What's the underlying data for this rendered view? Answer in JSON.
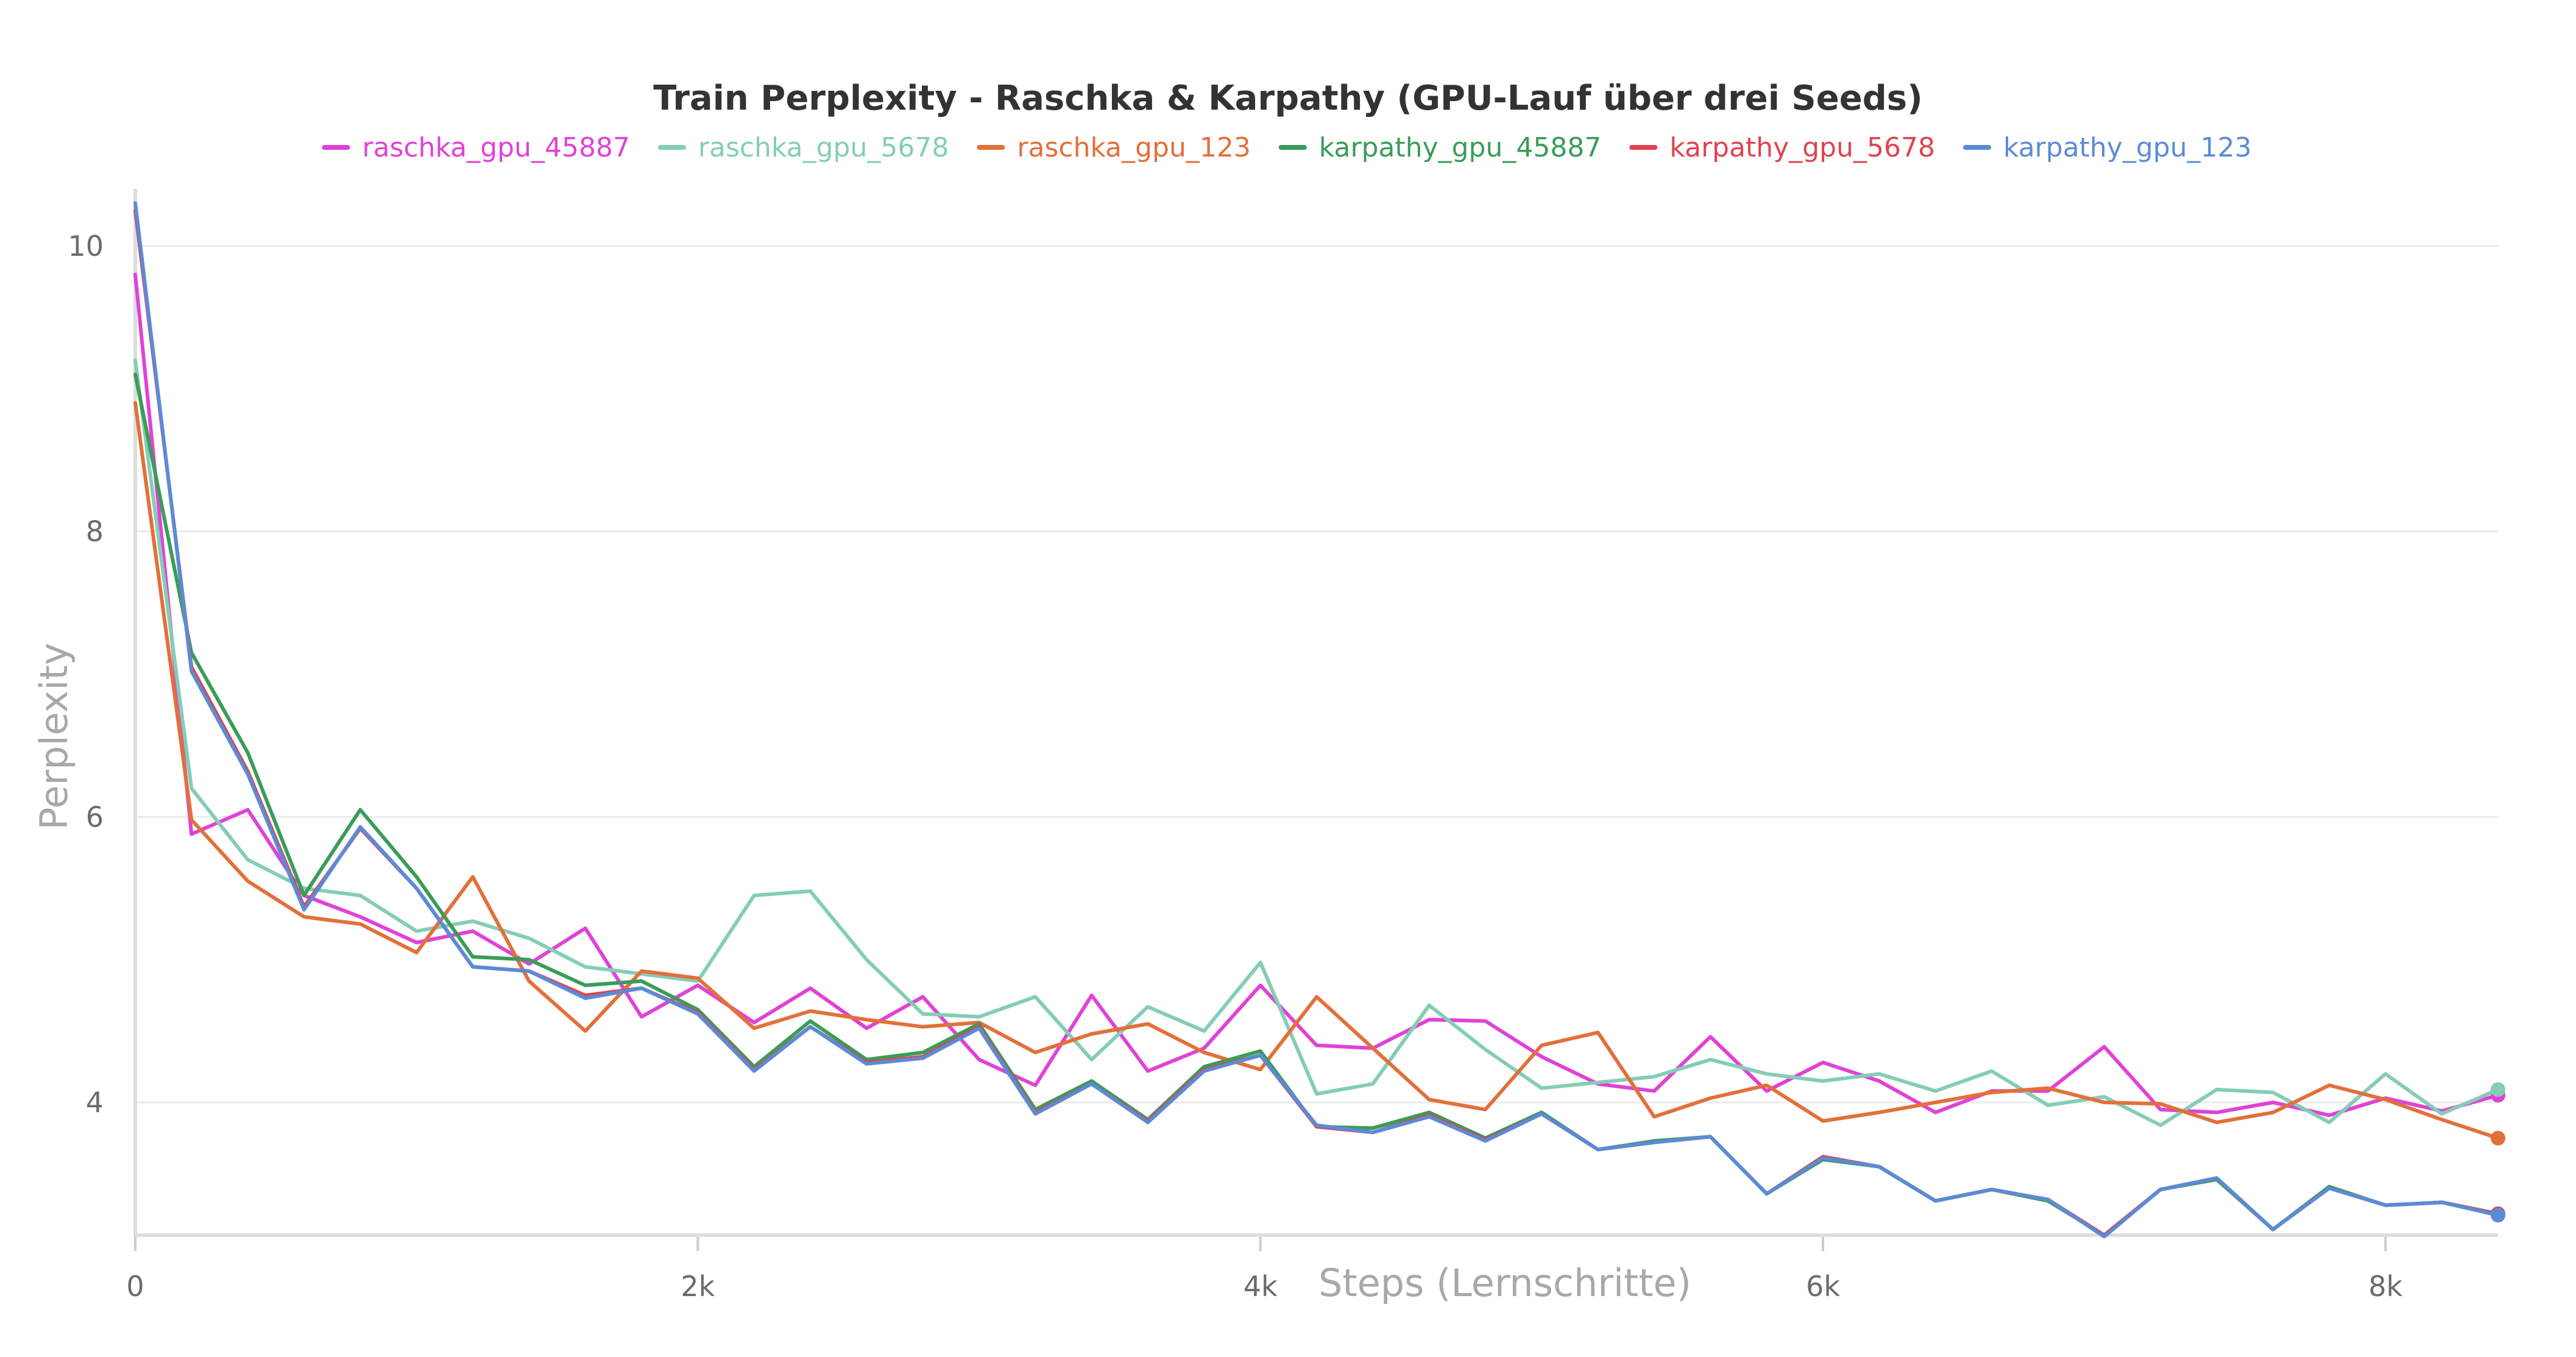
{
  "chart_data": {
    "type": "line",
    "title": "Train Perplexity - Raschka & Karpathy (GPU-Lauf über drei Seeds)",
    "xlabel": "Steps (Lernschritte)",
    "ylabel": "Perplexity",
    "xlim": [
      0,
      8400
    ],
    "ylim": [
      3.07,
      10.4
    ],
    "xticks": [
      0,
      2000,
      4000,
      6000,
      8000
    ],
    "xtick_labels": [
      "0",
      "2k",
      "4k",
      "6k",
      "8k"
    ],
    "yticks": [
      4,
      6,
      8,
      10
    ],
    "ytick_labels": [
      "4",
      "6",
      "8",
      "10"
    ],
    "grid": true,
    "legend_position": "top-center",
    "series": [
      {
        "name": "raschka_gpu_45887",
        "color": "#e042d6",
        "x": [
          0,
          200,
          400,
          600,
          800,
          1000,
          1200,
          1400,
          1600,
          1800,
          2000,
          2200,
          2400,
          2600,
          2800,
          3000,
          3200,
          3400,
          3600,
          3800,
          4000,
          4200,
          4400,
          4600,
          4800,
          5000,
          5200,
          5400,
          5600,
          5800,
          6000,
          6200,
          6400,
          6600,
          6800,
          7000,
          7200,
          7400,
          7600,
          7800,
          8000,
          8200,
          8400
        ],
        "values": [
          9.8,
          5.88,
          6.05,
          5.45,
          5.3,
          5.12,
          5.2,
          4.97,
          5.22,
          4.6,
          4.82,
          4.56,
          4.8,
          4.52,
          4.74,
          4.3,
          4.12,
          4.75,
          4.22,
          4.38,
          4.82,
          4.4,
          4.38,
          4.58,
          4.57,
          4.32,
          4.13,
          4.08,
          4.46,
          4.08,
          4.28,
          4.15,
          3.93,
          4.08,
          4.08,
          4.39,
          3.95,
          3.93,
          4.0,
          3.91,
          4.03,
          3.94,
          4.05
        ]
      },
      {
        "name": "raschka_gpu_5678",
        "color": "#84cdb7",
        "x": [
          0,
          200,
          400,
          600,
          800,
          1000,
          1200,
          1400,
          1600,
          1800,
          2000,
          2200,
          2400,
          2600,
          2800,
          3000,
          3200,
          3400,
          3600,
          3800,
          4000,
          4200,
          4400,
          4600,
          4800,
          5000,
          5200,
          5400,
          5600,
          5800,
          6000,
          6200,
          6400,
          6600,
          6800,
          7000,
          7200,
          7400,
          7600,
          7800,
          8000,
          8200,
          8400
        ],
        "values": [
          9.2,
          6.2,
          5.7,
          5.5,
          5.45,
          5.2,
          5.27,
          5.15,
          4.95,
          4.9,
          4.85,
          5.45,
          5.48,
          5.0,
          4.62,
          4.6,
          4.74,
          4.3,
          4.67,
          4.5,
          4.98,
          4.06,
          4.13,
          4.68,
          4.37,
          4.1,
          4.14,
          4.18,
          4.3,
          4.2,
          4.15,
          4.2,
          4.08,
          4.22,
          3.98,
          4.04,
          3.84,
          4.09,
          4.07,
          3.86,
          4.2,
          3.92,
          4.09
        ]
      },
      {
        "name": "raschka_gpu_123",
        "color": "#e2703a",
        "x": [
          0,
          200,
          400,
          600,
          800,
          1000,
          1200,
          1400,
          1600,
          1800,
          2000,
          2200,
          2400,
          2600,
          2800,
          3000,
          3200,
          3400,
          3600,
          3800,
          4000,
          4200,
          4400,
          4600,
          4800,
          5000,
          5200,
          5400,
          5600,
          5800,
          6000,
          6200,
          6400,
          6600,
          6800,
          7000,
          7200,
          7400,
          7600,
          7800,
          8000,
          8200,
          8400
        ],
        "values": [
          8.9,
          5.98,
          5.55,
          5.3,
          5.25,
          5.05,
          5.58,
          4.85,
          4.5,
          4.92,
          4.87,
          4.52,
          4.64,
          4.58,
          4.53,
          4.56,
          4.35,
          4.48,
          4.55,
          4.35,
          4.23,
          4.74,
          4.38,
          4.02,
          3.95,
          4.4,
          4.49,
          3.9,
          4.03,
          4.12,
          3.87,
          3.93,
          4.0,
          4.07,
          4.1,
          4.0,
          3.99,
          3.86,
          3.93,
          4.12,
          4.02,
          3.88,
          3.75
        ]
      },
      {
        "name": "karpathy_gpu_45887",
        "color": "#3a9c58",
        "x": [
          0,
          200,
          400,
          600,
          800,
          1000,
          1200,
          1400,
          1600,
          1800,
          2000,
          2200,
          2400,
          2600,
          2800,
          3000,
          3200,
          3400,
          3600,
          3800,
          4000,
          4200,
          4400,
          4600,
          4800,
          5000,
          5200,
          5400,
          5600,
          5800,
          6000,
          6200,
          6400,
          6600,
          6800,
          7000,
          7200,
          7400,
          7600,
          7800,
          8000,
          8200,
          8400
        ],
        "values": [
          9.1,
          7.15,
          6.45,
          5.45,
          6.05,
          5.58,
          5.02,
          5.0,
          4.82,
          4.85,
          4.65,
          4.25,
          4.57,
          4.3,
          4.35,
          4.55,
          3.95,
          4.15,
          3.88,
          4.25,
          4.36,
          3.83,
          3.82,
          3.93,
          3.75,
          3.93,
          3.67,
          3.73,
          3.76,
          3.36,
          3.6,
          3.55,
          3.31,
          3.39,
          3.31,
          3.07,
          3.39,
          3.46,
          3.11,
          3.41,
          3.28,
          3.3,
          3.22
        ]
      },
      {
        "name": "karpathy_gpu_5678",
        "color": "#e0434f",
        "x": [
          0,
          200,
          400,
          600,
          800,
          1000,
          1200,
          1400,
          1600,
          1800,
          2000,
          2200,
          2400,
          2600,
          2800,
          3000,
          3200,
          3400,
          3600,
          3800,
          4000,
          4200,
          4400,
          4600,
          4800,
          5000,
          5200,
          5400,
          5600,
          5800,
          6000,
          6200,
          6400,
          6600,
          6800,
          7000,
          7200,
          7400,
          7600,
          7800,
          8000,
          8200,
          8400
        ],
        "values": [
          10.25,
          7.05,
          6.32,
          5.37,
          5.92,
          5.5,
          4.95,
          4.92,
          4.75,
          4.8,
          4.63,
          4.23,
          4.53,
          4.28,
          4.32,
          4.53,
          3.93,
          4.13,
          3.87,
          4.23,
          4.33,
          3.83,
          3.79,
          3.91,
          3.74,
          3.92,
          3.67,
          3.72,
          3.76,
          3.36,
          3.62,
          3.55,
          3.31,
          3.39,
          3.32,
          3.07,
          3.39,
          3.47,
          3.11,
          3.4,
          3.28,
          3.3,
          3.22
        ]
      },
      {
        "name": "karpathy_gpu_123",
        "color": "#5b8bd6",
        "x": [
          0,
          200,
          400,
          600,
          800,
          1000,
          1200,
          1400,
          1600,
          1800,
          2000,
          2200,
          2400,
          2600,
          2800,
          3000,
          3200,
          3400,
          3600,
          3800,
          4000,
          4200,
          4400,
          4600,
          4800,
          5000,
          5200,
          5400,
          5600,
          5800,
          6000,
          6200,
          6400,
          6600,
          6800,
          7000,
          7200,
          7400,
          7600,
          7800,
          8000,
          8200,
          8400
        ],
        "values": [
          10.3,
          7.02,
          6.3,
          5.35,
          5.93,
          5.5,
          4.95,
          4.92,
          4.73,
          4.8,
          4.62,
          4.22,
          4.53,
          4.27,
          4.31,
          4.52,
          3.92,
          4.13,
          3.86,
          4.22,
          4.33,
          3.84,
          3.79,
          3.9,
          3.73,
          3.92,
          3.67,
          3.72,
          3.76,
          3.36,
          3.61,
          3.55,
          3.31,
          3.39,
          3.32,
          3.06,
          3.39,
          3.47,
          3.11,
          3.4,
          3.28,
          3.3,
          3.21
        ]
      }
    ]
  }
}
